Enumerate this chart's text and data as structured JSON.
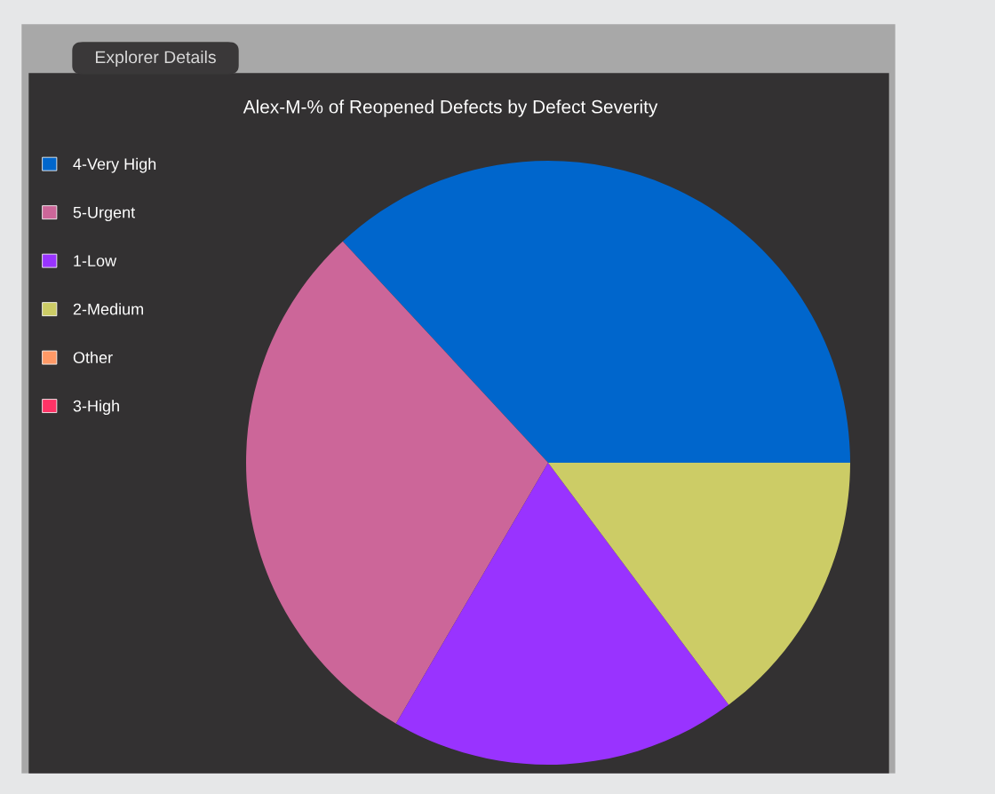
{
  "chart_data": {
    "type": "pie",
    "title": "Alex-M-% of Reopened Defects by Defect Severity",
    "categories": [
      "4-Very High",
      "5-Urgent",
      "1-Low",
      "2-Medium",
      "Other",
      "3-High"
    ],
    "values": [
      36.9,
      29.7,
      18.6,
      14.8,
      0,
      0
    ],
    "colors": [
      "#0066cc",
      "#cc6699",
      "#9933ff",
      "#cccc66",
      "#ff9966",
      "#ff3366"
    ],
    "legend": "left",
    "annotations": [
      "Explorer Details"
    ]
  }
}
